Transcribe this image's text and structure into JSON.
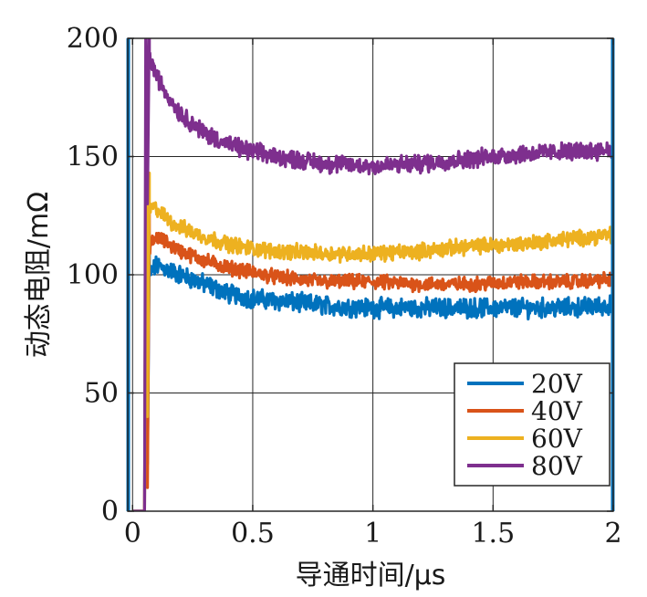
{
  "chart_data": {
    "type": "line",
    "xlabel": "导通时间/μs",
    "ylabel": "动态电阻/mΩ",
    "xlim": [
      -0.02,
      2.0
    ],
    "ylim": [
      0,
      200
    ],
    "x_ticks": [
      {
        "value": 0,
        "label": "0"
      },
      {
        "value": 0.5,
        "label": "0.5"
      },
      {
        "value": 1,
        "label": "1"
      },
      {
        "value": 1.5,
        "label": "1.5"
      },
      {
        "value": 2,
        "label": "2"
      }
    ],
    "y_ticks": [
      {
        "value": 0,
        "label": "0"
      },
      {
        "value": 50,
        "label": "50"
      },
      {
        "value": 100,
        "label": "100"
      },
      {
        "value": 150,
        "label": "150"
      },
      {
        "value": 200,
        "label": "200"
      }
    ],
    "grid": true,
    "legend_position": "bottom-right",
    "series": [
      {
        "name": "20V",
        "color": "#0072BD",
        "noise": 3.2,
        "x": [
          0.05,
          0.07,
          0.1,
          0.15,
          0.2,
          0.3,
          0.4,
          0.5,
          0.6,
          0.8,
          1.0,
          1.2,
          1.4,
          1.6,
          1.8,
          2.0
        ],
        "y": [
          40,
          100,
          104,
          102,
          100,
          96,
          92,
          90,
          89,
          87,
          86,
          86,
          86,
          86,
          86,
          87
        ]
      },
      {
        "name": "40V",
        "color": "#D95319",
        "noise": 2.4,
        "x": [
          0.05,
          0.07,
          0.1,
          0.15,
          0.2,
          0.3,
          0.4,
          0.5,
          0.6,
          0.8,
          1.0,
          1.2,
          1.4,
          1.6,
          1.8,
          2.0
        ],
        "y": [
          30,
          112,
          116,
          113,
          110,
          106,
          103,
          101,
          99,
          97,
          97,
          96,
          96,
          97,
          97,
          98
        ]
      },
      {
        "name": "60V",
        "color": "#EDB120",
        "noise": 2.6,
        "x": [
          0.05,
          0.07,
          0.1,
          0.15,
          0.2,
          0.3,
          0.4,
          0.5,
          0.6,
          0.8,
          1.0,
          1.2,
          1.4,
          1.6,
          1.8,
          2.0
        ],
        "y": [
          60,
          128,
          128,
          123,
          120,
          116,
          113,
          111,
          110,
          109,
          109,
          110,
          112,
          113,
          115,
          117
        ]
      },
      {
        "name": "80V",
        "color": "#7E2F8E",
        "noise": 3.0,
        "x": [
          0.05,
          0.07,
          0.1,
          0.15,
          0.2,
          0.3,
          0.4,
          0.5,
          0.6,
          0.8,
          1.0,
          1.2,
          1.4,
          1.6,
          1.8,
          2.0
        ],
        "y": [
          150,
          192,
          184,
          175,
          168,
          160,
          155,
          152,
          150,
          147,
          146,
          147,
          149,
          151,
          152,
          153
        ]
      }
    ]
  }
}
